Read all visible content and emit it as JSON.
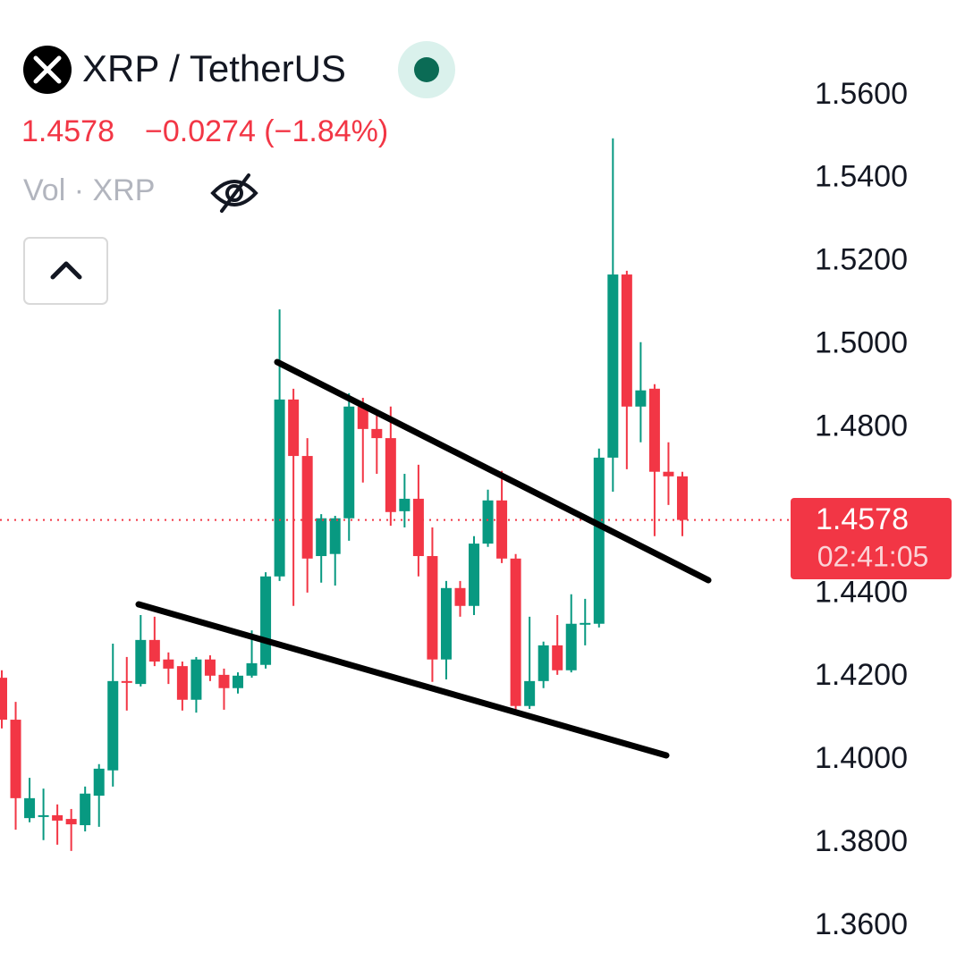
{
  "chart_data": {
    "type": "candlestick",
    "title": "XRP / TetherUS",
    "last_price": 1.4578,
    "change": "−0.0274 (−1.84%)",
    "volume_label": "Vol · XRP",
    "countdown": "02:41:05",
    "up_color": "#089981",
    "down_color": "#f23645",
    "grid": false,
    "ylim": [
      1.3475,
      1.583
    ],
    "yticks": [
      {
        "value": 1.56,
        "label": "1.5600"
      },
      {
        "value": 1.54,
        "label": "1.5400"
      },
      {
        "value": 1.52,
        "label": "1.5200"
      },
      {
        "value": 1.5,
        "label": "1.5000"
      },
      {
        "value": 1.48,
        "label": "1.4800"
      },
      {
        "value": 1.44,
        "label": "1.4400"
      },
      {
        "value": 1.42,
        "label": "1.4200"
      },
      {
        "value": 1.4,
        "label": "1.4000"
      },
      {
        "value": 1.38,
        "label": "1.3800"
      },
      {
        "value": 1.36,
        "label": "1.3600"
      }
    ],
    "open": [
      1.4198,
      1.4097,
      1.386,
      1.3863,
      1.3867,
      1.3858,
      1.3843,
      1.3914,
      1.3975,
      1.419,
      1.4183,
      1.4289,
      1.4242,
      1.4226,
      1.4145,
      1.4242,
      1.4205,
      1.4173,
      1.4203,
      1.4229,
      1.4442,
      1.4868,
      1.4732,
      1.4491,
      1.4496,
      1.4582,
      1.4851,
      1.4797,
      1.4775,
      1.4599,
      1.4629,
      1.4491,
      1.4242,
      1.4414,
      1.4371,
      1.4521,
      1.4625,
      1.4485,
      1.413,
      1.419,
      1.4276,
      1.4216,
      1.4328,
      1.4328,
      1.4728,
      1.5169,
      1.4851,
      1.4894,
      1.4694,
      1.4683
    ],
    "high": [
      1.4216,
      1.414,
      1.3957,
      1.3931,
      1.3893,
      1.3882,
      1.3936,
      1.399,
      1.428,
      1.4248,
      1.4349,
      1.4345,
      1.4259,
      1.4237,
      1.4248,
      1.4252,
      1.422,
      1.4211,
      1.4312,
      1.4452,
      1.5085,
      1.4894,
      1.4775,
      1.4592,
      1.4588,
      1.4883,
      1.4872,
      1.484,
      1.4851,
      1.4689,
      1.4711,
      1.456,
      1.4431,
      1.4431,
      1.4539,
      1.4651,
      1.4696,
      1.4496,
      1.4345,
      1.4285,
      1.4349,
      1.4399,
      1.4388,
      1.475,
      1.5497,
      1.5178,
      1.5006,
      1.4905,
      1.4765,
      1.4694
    ],
    "low": [
      1.4076,
      1.3832,
      1.385,
      1.3807,
      1.3796,
      1.3781,
      1.3828,
      1.3839,
      1.3936,
      1.4119,
      1.4177,
      1.4226,
      1.4183,
      1.4119,
      1.4114,
      1.419,
      1.4121,
      1.416,
      1.4198,
      1.422,
      1.4431,
      1.4371,
      1.4403,
      1.4427,
      1.442,
      1.4528,
      1.4668,
      1.4689,
      1.4564,
      1.456,
      1.4442,
      1.4188,
      1.4194,
      1.4345,
      1.4349,
      1.4513,
      1.4474,
      1.4108,
      1.4123,
      1.4173,
      1.4205,
      1.4211,
      1.4276,
      1.4319,
      1.4646,
      1.47,
      1.4765,
      1.4539,
      1.4614,
      1.4539
    ],
    "close": [
      1.4097,
      1.3908,
      1.3908,
      1.3867,
      1.3854,
      1.3845,
      1.3919,
      1.3979,
      1.419,
      1.4186,
      1.4289,
      1.4237,
      1.422,
      1.4145,
      1.4242,
      1.4203,
      1.4173,
      1.4203,
      1.4233,
      1.4442,
      1.4868,
      1.4732,
      1.4485,
      1.4582,
      1.4582,
      1.4851,
      1.4797,
      1.4775,
      1.4597,
      1.4629,
      1.4491,
      1.4242,
      1.4414,
      1.4371,
      1.4521,
      1.4625,
      1.4485,
      1.413,
      1.419,
      1.4276,
      1.4216,
      1.4328,
      1.433,
      1.4728,
      1.5169,
      1.4851,
      1.489,
      1.4694,
      1.4683,
      1.4578
    ]
  }
}
